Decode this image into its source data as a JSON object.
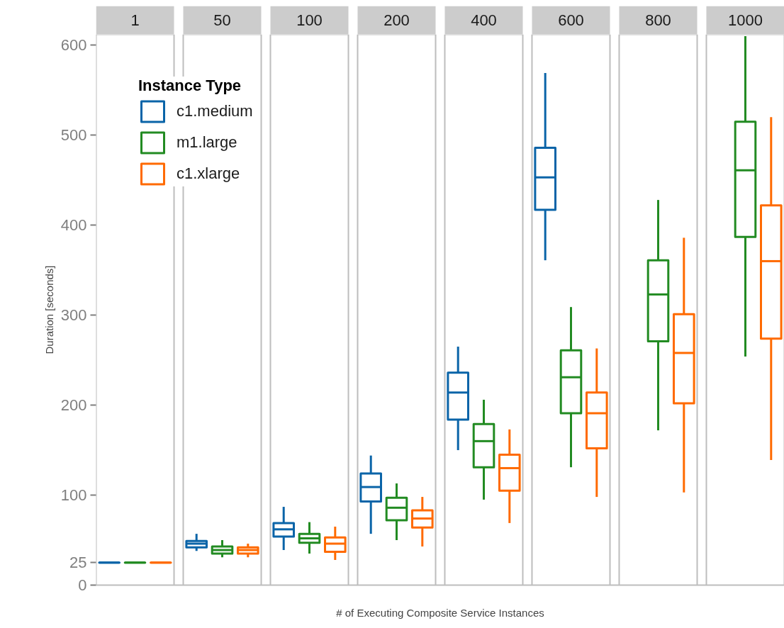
{
  "chart_data": {
    "type": "box",
    "xlabel": "# of Executing Composite Service Instances",
    "ylabel": "Duration [seconds]",
    "legend_title": "Instance Type",
    "legend": "top left",
    "grid": false,
    "categories": [
      "1",
      "50",
      "100",
      "200",
      "400",
      "600",
      "800",
      "1000"
    ],
    "ylim": [
      0,
      612
    ],
    "yticks": [
      0,
      25,
      100,
      200,
      300,
      400,
      500,
      600
    ],
    "series": [
      {
        "name": "c1.medium",
        "color": "#0a64a8",
        "boxes": [
          {
            "low": 25,
            "q1": 25,
            "median": 25,
            "q3": 25,
            "high": 25
          },
          {
            "low": 38,
            "q1": 42,
            "median": 46,
            "q3": 49,
            "high": 57
          },
          {
            "low": 39,
            "q1": 54,
            "median": 62,
            "q3": 69,
            "high": 87
          },
          {
            "low": 57,
            "q1": 93,
            "median": 109,
            "q3": 124,
            "high": 144
          },
          {
            "low": 150,
            "q1": 184,
            "median": 214,
            "q3": 236,
            "high": 265
          },
          {
            "low": 361,
            "q1": 417,
            "median": 453,
            "q3": 486,
            "high": 569
          },
          null,
          null
        ]
      },
      {
        "name": "m1.large",
        "color": "#228b22",
        "boxes": [
          {
            "low": 25,
            "q1": 25,
            "median": 25,
            "q3": 25,
            "high": 25
          },
          {
            "low": 31,
            "q1": 35,
            "median": 39,
            "q3": 43,
            "high": 50
          },
          {
            "low": 35,
            "q1": 47,
            "median": 52,
            "q3": 57,
            "high": 70
          },
          {
            "low": 50,
            "q1": 72,
            "median": 86,
            "q3": 97,
            "high": 113
          },
          {
            "low": 95,
            "q1": 131,
            "median": 160,
            "q3": 179,
            "high": 206
          },
          {
            "low": 131,
            "q1": 191,
            "median": 231,
            "q3": 261,
            "high": 309
          },
          {
            "low": 172,
            "q1": 271,
            "median": 323,
            "q3": 361,
            "high": 428
          },
          {
            "low": 254,
            "q1": 387,
            "median": 461,
            "q3": 515,
            "high": 610
          }
        ]
      },
      {
        "name": "c1.xlarge",
        "color": "#ff6a00",
        "boxes": [
          {
            "low": 25,
            "q1": 25,
            "median": 25,
            "q3": 25,
            "high": 25
          },
          {
            "low": 31,
            "q1": 35,
            "median": 39,
            "q3": 42,
            "high": 46
          },
          {
            "low": 28,
            "q1": 37,
            "median": 46,
            "q3": 53,
            "high": 65
          },
          {
            "low": 43,
            "q1": 64,
            "median": 74,
            "q3": 83,
            "high": 98
          },
          {
            "low": 69,
            "q1": 105,
            "median": 130,
            "q3": 145,
            "high": 173
          },
          {
            "low": 98,
            "q1": 152,
            "median": 191,
            "q3": 214,
            "high": 263
          },
          {
            "low": 103,
            "q1": 202,
            "median": 258,
            "q3": 301,
            "high": 386
          },
          {
            "low": 139,
            "q1": 274,
            "median": 360,
            "q3": 422,
            "high": 520
          }
        ]
      }
    ]
  }
}
